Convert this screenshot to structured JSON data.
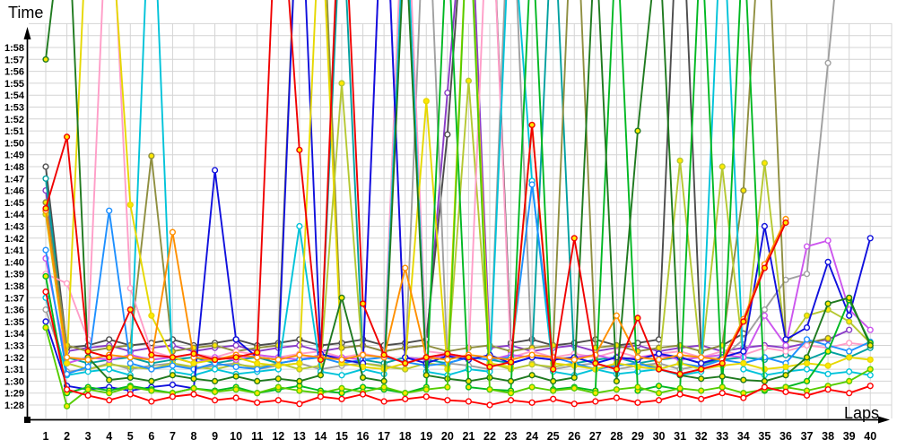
{
  "ui": {
    "y_axis_title": "Time",
    "x_axis_title": "Laps"
  },
  "layout_colors": {
    "background": "#ffffff",
    "grid": "#d4d4d4",
    "axis": "#000000",
    "tick_text": "#000000"
  },
  "chart_data": {
    "type": "line",
    "title": "",
    "xlabel": "Laps",
    "ylabel": "Time",
    "legend": "none",
    "grid": true,
    "x_axis": {
      "ticks": [
        "1",
        "2",
        "3",
        "4",
        "5",
        "6",
        "7",
        "8",
        "9",
        "10",
        "11",
        "12",
        "13",
        "14",
        "15",
        "16",
        "17",
        "18",
        "19",
        "20",
        "21",
        "22",
        "23",
        "24",
        "25",
        "26",
        "27",
        "28",
        "29",
        "30",
        "31",
        "32",
        "33",
        "34",
        "35",
        "36",
        "37",
        "38",
        "39",
        "40"
      ]
    },
    "y_axis": {
      "unit": "m:ss",
      "min_label": "1:28",
      "max_label": "1:58",
      "tick_step_seconds": 1,
      "ticks": [
        "1:28",
        "1:29",
        "1:30",
        "1:31",
        "1:32",
        "1:33",
        "1:34",
        "1:35",
        "1:36",
        "1:37",
        "1:38",
        "1:39",
        "1:40",
        "1:41",
        "1:42",
        "1:43",
        "1:44",
        "1:45",
        "1:46",
        "1:47",
        "1:48",
        "1:49",
        "1:50",
        "1:51",
        "1:52",
        "1:53",
        "1:54",
        "1:55",
        "1:56",
        "1:57",
        "1:58"
      ]
    },
    "x": [
      1,
      2,
      3,
      4,
      5,
      6,
      7,
      8,
      9,
      10,
      11,
      12,
      13,
      14,
      15,
      16,
      17,
      18,
      19,
      20,
      21,
      22,
      23,
      24,
      25,
      26,
      27,
      28,
      29,
      30,
      31,
      32,
      33,
      34,
      35,
      36,
      37,
      38,
      39,
      40
    ],
    "values_unit": "seconds (values above 118 run off the top of the plot; null = no lap recorded)",
    "series": [
      {
        "name": "series-violet",
        "color": "#8a3cc8",
        "marker_fill": "#ffffff",
        "values": [
          106.0,
          92.5,
          92.8,
          93.0,
          92.5,
          92.8,
          93.0,
          92.5,
          92.8,
          93.0,
          92.5,
          92.8,
          93.0,
          92.5,
          92.8,
          93.0,
          92.5,
          92.8,
          93.0,
          114.2,
          135.0,
          92.8,
          93.0,
          92.5,
          92.8,
          93.0,
          92.5,
          92.8,
          93.0,
          92.5,
          92.8,
          93.0,
          92.5,
          92.8,
          93.0,
          92.8,
          93.2,
          93.5,
          94.3,
          null
        ]
      },
      {
        "name": "series-darkgray",
        "color": "#4d4d4d",
        "marker_fill": "#ffffff",
        "values": [
          108.0,
          92.8,
          93.0,
          93.5,
          93.0,
          93.2,
          93.5,
          93.0,
          93.2,
          93.5,
          93.0,
          93.2,
          93.5,
          93.0,
          93.2,
          93.5,
          93.0,
          93.2,
          93.5,
          110.7,
          135.0,
          135.0,
          93.2,
          93.5,
          93.0,
          93.2,
          93.5,
          93.0,
          93.2,
          93.5,
          135.0,
          92.5,
          93.0,
          94.0,
          null,
          null,
          null,
          null,
          null,
          null
        ]
      },
      {
        "name": "series-gray",
        "color": "#a0a0a0",
        "marker_fill": "#ffffff",
        "values": [
          96.0,
          90.8,
          91.0,
          91.5,
          91.0,
          91.3,
          91.5,
          91.0,
          91.3,
          91.5,
          91.0,
          91.3,
          91.5,
          91.0,
          91.3,
          91.5,
          91.3,
          91.0,
          135.0,
          91.5,
          91.3,
          91.0,
          135.0,
          91.5,
          91.0,
          91.3,
          91.5,
          91.0,
          91.3,
          91.5,
          91.0,
          91.3,
          92.0,
          93.5,
          96.0,
          98.5,
          99.0,
          116.7,
          135.0,
          null
        ]
      },
      {
        "name": "series-teal",
        "color": "#00a0a0",
        "marker_fill": "#ffffff",
        "values": [
          107.0,
          92.0,
          91.5,
          91.8,
          92.0,
          91.5,
          91.8,
          92.0,
          91.5,
          91.8,
          92.0,
          91.5,
          91.8,
          92.0,
          131.0,
          91.8,
          91.5,
          92.0,
          91.8,
          91.5,
          92.0,
          91.8,
          91.5,
          92.0,
          131.0,
          91.5,
          91.8,
          92.0,
          91.5,
          91.8,
          92.0,
          91.5,
          91.8,
          92.0,
          91.8,
          92.2,
          91.8,
          92.5,
          92.0,
          92.8
        ]
      },
      {
        "name": "series-olive",
        "color": "#8f8f40",
        "marker_fill": "#ffe800",
        "values": [
          105.0,
          93.0,
          92.5,
          92.8,
          93.0,
          108.9,
          92.5,
          92.8,
          93.0,
          92.5,
          92.8,
          93.0,
          135.0,
          135.0,
          92.8,
          93.0,
          92.5,
          92.8,
          93.0,
          92.5,
          92.8,
          93.0,
          92.5,
          92.8,
          93.0,
          135.0,
          92.8,
          93.0,
          92.5,
          92.8,
          93.0,
          92.5,
          93.0,
          106.0,
          135.0,
          93.5,
          93.2,
          93.6,
          null,
          null
        ]
      },
      {
        "name": "series-yellowgreen",
        "color": "#b5c832",
        "marker_fill": "#ffe800",
        "values": [
          104.0,
          91.5,
          91.0,
          91.4,
          91.2,
          91.0,
          91.5,
          91.2,
          91.0,
          91.4,
          91.2,
          91.5,
          91.0,
          91.3,
          115.0,
          91.5,
          91.2,
          91.0,
          91.5,
          91.3,
          115.2,
          91.5,
          91.0,
          91.4,
          91.2,
          91.5,
          91.0,
          91.3,
          91.5,
          91.2,
          108.5,
          91.5,
          108.0,
          92.0,
          108.3,
          93.0,
          95.5,
          96.0,
          95.0,
          93.2
        ]
      },
      {
        "name": "series-pink",
        "color": "#ff9ec8",
        "marker_fill": "#ffffff",
        "values": [
          99.0,
          98.2,
          93.5,
          135.0,
          97.8,
          92.5,
          92.0,
          92.3,
          92.0,
          92.5,
          92.2,
          92.0,
          92.3,
          92.5,
          92.0,
          92.3,
          92.0,
          135.0,
          92.5,
          92.3,
          92.0,
          135.0,
          92.0,
          92.5,
          92.0,
          92.3,
          92.0,
          92.5,
          92.0,
          92.3,
          92.5,
          92.0,
          92.5,
          92.2,
          92.8,
          92.5,
          93.0,
          92.8,
          93.2,
          93.0
        ]
      },
      {
        "name": "series-magenta",
        "color": "#cc55ee",
        "marker_fill": "#ffffff",
        "values": [
          100.3,
          91.5,
          92.0,
          91.8,
          92.2,
          91.8,
          92.0,
          91.5,
          92.0,
          91.8,
          92.2,
          92.0,
          91.8,
          92.2,
          92.0,
          91.8,
          135.0,
          92.0,
          91.8,
          92.2,
          92.0,
          91.8,
          92.2,
          92.0,
          91.8,
          92.0,
          92.2,
          91.8,
          92.0,
          92.2,
          91.8,
          92.0,
          92.2,
          92.0,
          95.5,
          93.0,
          101.3,
          101.8,
          96.0,
          94.3
        ]
      },
      {
        "name": "series-cyan",
        "color": "#00c3d9",
        "marker_fill": "#ffffff",
        "values": [
          97.0,
          90.5,
          90.8,
          91.0,
          90.5,
          135.0,
          90.8,
          90.5,
          91.0,
          90.6,
          90.8,
          91.0,
          103.0,
          90.8,
          90.5,
          91.0,
          90.6,
          131.0,
          90.8,
          90.5,
          91.0,
          90.8,
          131.0,
          106.8,
          90.8,
          90.5,
          91.0,
          90.6,
          90.8,
          91.0,
          90.5,
          90.8,
          131.0,
          91.0,
          90.5,
          90.8,
          91.0,
          90.6,
          90.8,
          90.5
        ]
      },
      {
        "name": "series-dodgerblue",
        "color": "#1e90ff",
        "marker_fill": "#ffffff",
        "values": [
          101.0,
          90.6,
          91.2,
          104.3,
          91.5,
          91.0,
          91.3,
          91.0,
          91.5,
          91.2,
          91.0,
          91.5,
          91.8,
          92.0,
          91.5,
          91.8,
          92.0,
          91.6,
          91.3,
          91.5,
          92.0,
          91.8,
          92.0,
          106.5,
          92.0,
          91.5,
          91.0,
          91.3,
          91.5,
          91.0,
          91.5,
          91.2,
          91.8,
          91.5,
          92.0,
          91.5,
          93.5,
          93.0,
          92.5,
          93.3
        ]
      },
      {
        "name": "series-blue",
        "color": "#1010dd",
        "marker_fill": "#ffffff",
        "values": [
          95.0,
          89.6,
          89.3,
          89.5,
          89.2,
          89.5,
          89.7,
          89.4,
          107.7,
          93.5,
          92.0,
          91.8,
          135.0,
          92.3,
          91.8,
          91.5,
          135.0,
          92.0,
          91.5,
          92.1,
          91.8,
          92.2,
          91.5,
          92.0,
          91.8,
          92.0,
          91.5,
          92.0,
          91.8,
          92.3,
          92.0,
          91.5,
          92.0,
          92.5,
          103.0,
          93.5,
          94.5,
          100.0,
          95.5,
          102.0
        ]
      },
      {
        "name": "series-yellow",
        "color": "#e6d800",
        "marker_fill": "#ffe800",
        "values": [
          104.3,
          91.5,
          131.0,
          131.0,
          104.8,
          95.5,
          92.0,
          91.5,
          91.8,
          92.0,
          91.5,
          91.3,
          91.5,
          131.0,
          91.5,
          91.2,
          91.0,
          91.5,
          113.5,
          91.0,
          131.0,
          91.5,
          91.2,
          111.5,
          91.5,
          91.3,
          91.0,
          91.5,
          91.2,
          91.0,
          91.5,
          91.0,
          91.3,
          91.5,
          91.0,
          91.2,
          91.5,
          91.3,
          92.0,
          91.8
        ]
      },
      {
        "name": "series-green",
        "color": "#00b822",
        "marker_fill": "#ffe800",
        "values": [
          98.8,
          89.0,
          89.5,
          89.2,
          89.6,
          89.3,
          89.0,
          89.4,
          89.2,
          89.5,
          89.0,
          89.3,
          89.6,
          89.2,
          89.0,
          89.5,
          89.3,
          89.0,
          89.5,
          128.0,
          89.5,
          89.3,
          89.2,
          128.0,
          89.3,
          89.5,
          89.2,
          128.0,
          89.2,
          89.6,
          89.3,
          128.0,
          89.5,
          128.0,
          89.2,
          89.5,
          90.0,
          92.5,
          96.8,
          93.2
        ]
      },
      {
        "name": "series-darkgreen",
        "color": "#1f7a1f",
        "marker_fill": "#ffe800",
        "values": [
          117.0,
          132.0,
          92.0,
          90.1,
          90.3,
          90.0,
          90.5,
          90.2,
          90.0,
          90.4,
          90.0,
          90.2,
          90.0,
          90.5,
          97.0,
          90.3,
          90.0,
          128.0,
          90.5,
          90.2,
          90.0,
          90.3,
          90.0,
          90.5,
          90.0,
          90.3,
          128.0,
          90.0,
          111.0,
          128.0,
          90.5,
          90.2,
          90.4,
          90.1,
          90.0,
          90.5,
          92.0,
          96.5,
          97.0,
          93.0
        ]
      },
      {
        "name": "series-lime",
        "color": "#55cc00",
        "marker_fill": "#ffe800",
        "values": [
          94.5,
          87.9,
          89.3,
          89.0,
          89.5,
          89.2,
          89.0,
          89.4,
          89.1,
          89.3,
          89.0,
          89.5,
          89.2,
          89.0,
          89.4,
          89.1,
          89.5,
          89.0,
          89.3,
          89.5,
          131.0,
          89.3,
          89.0,
          89.5,
          89.2,
          89.4,
          89.0,
          89.3,
          89.5,
          89.0,
          89.4,
          89.2,
          89.5,
          89.0,
          89.3,
          89.5,
          89.2,
          89.6,
          90.0,
          91.0
        ]
      },
      {
        "name": "series-orange",
        "color": "#ff9000",
        "marker_fill": "#ffffff",
        "values": [
          104.3,
          92.0,
          91.8,
          92.2,
          92.0,
          91.8,
          102.5,
          92.0,
          91.8,
          92.2,
          92.0,
          91.8,
          92.2,
          92.0,
          91.8,
          92.2,
          92.0,
          99.5,
          92.0,
          91.8,
          92.2,
          92.0,
          91.8,
          92.2,
          92.0,
          91.8,
          92.2,
          95.5,
          92.0,
          91.8,
          92.2,
          92.0,
          91.8,
          95.2,
          99.8,
          103.6,
          null,
          null,
          null,
          null
        ]
      },
      {
        "name": "series-red2",
        "color": "#f00000",
        "marker_fill": "#ffe800",
        "values": [
          104.5,
          110.5,
          92.5,
          92.0,
          96.0,
          92.2,
          92.0,
          92.3,
          91.8,
          92.0,
          92.4,
          135.0,
          109.4,
          91.8,
          135.0,
          96.5,
          92.2,
          91.5,
          92.0,
          92.3,
          92.0,
          91.2,
          91.6,
          111.5,
          91.0,
          102.0,
          91.5,
          91.0,
          95.3,
          91.0,
          90.6,
          91.0,
          91.5,
          95.0,
          99.5,
          103.3,
          null,
          null,
          null,
          null
        ]
      },
      {
        "name": "series-red",
        "color": "#ff0000",
        "marker_fill": "#ffffff",
        "values": [
          97.5,
          89.3,
          88.8,
          88.4,
          88.9,
          88.3,
          88.7,
          88.9,
          88.4,
          88.6,
          88.2,
          88.4,
          88.1,
          88.7,
          88.5,
          88.9,
          88.3,
          88.5,
          88.7,
          88.4,
          88.3,
          88.0,
          88.4,
          88.2,
          88.5,
          88.1,
          88.3,
          88.6,
          88.2,
          88.4,
          88.9,
          88.5,
          89.0,
          88.6,
          89.5,
          89.1,
          88.8,
          89.3,
          89.0,
          89.6
        ]
      }
    ]
  }
}
